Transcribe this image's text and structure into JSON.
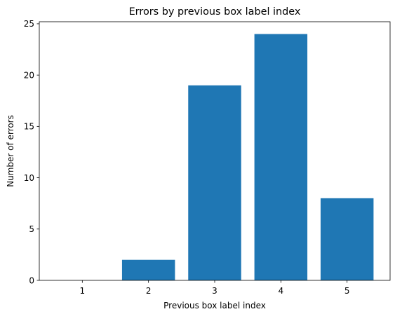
{
  "chart_data": {
    "type": "bar",
    "title": "Errors by previous box label index",
    "xlabel": "Previous box label index",
    "ylabel": "Number of errors",
    "categories": [
      "1",
      "2",
      "3",
      "4",
      "5"
    ],
    "values": [
      0,
      2,
      19,
      24,
      8
    ],
    "ylim": [
      0,
      25.2
    ],
    "yticks": [
      0,
      5,
      10,
      15,
      20,
      25
    ],
    "grid": false,
    "bar_color": "#1f77b4"
  }
}
